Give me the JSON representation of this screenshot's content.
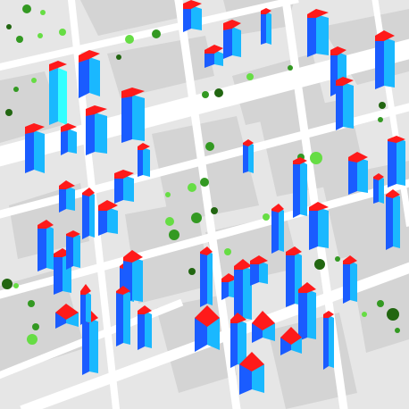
{
  "scene": {
    "colors": {
      "ground": "#e6e6e6",
      "road": "#ffffff",
      "block": "#d4d4d4",
      "roof": "#ff1a1a",
      "roof_highlight": "#ff3333",
      "building_side_light": "#1ab8ff",
      "building_side_dark": "#1a5cff",
      "tall_tower_side": "#33ffff",
      "tree_light": "#66dd44",
      "tree_mid": "#339922",
      "tree_dark": "#226611"
    }
  }
}
